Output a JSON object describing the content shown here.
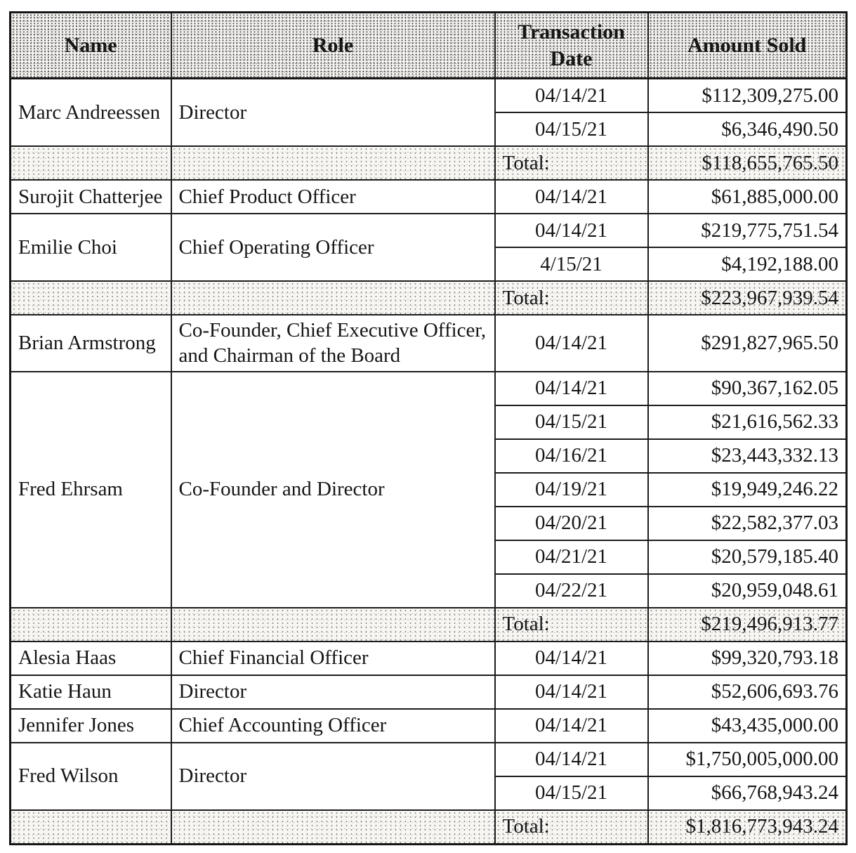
{
  "document": {
    "headers": {
      "name": "Name",
      "role": "Role",
      "date": "Transaction Date",
      "amount": "Amount Sold"
    },
    "total_label": "Total:",
    "groups": [
      {
        "name": "Marc Andreessen",
        "role": "Director",
        "transactions": [
          {
            "date": "04/14/21",
            "amount": "$112,309,275.00"
          },
          {
            "date": "04/15/21",
            "amount": "$6,346,490.50"
          }
        ],
        "total": "$118,655,765.50"
      },
      {
        "name": "Surojit Chatterjee",
        "role": "Chief Product Officer",
        "transactions": [
          {
            "date": "04/14/21",
            "amount": "$61,885,000.00"
          }
        ],
        "total": null
      },
      {
        "name": "Emilie Choi",
        "role": "Chief Operating Officer",
        "transactions": [
          {
            "date": "04/14/21",
            "amount": "$219,775,751.54"
          },
          {
            "date": "4/15/21",
            "amount": "$4,192,188.00"
          }
        ],
        "total": "$223,967,939.54"
      },
      {
        "name": "Brian Armstrong",
        "role": "Co-Founder, Chief Executive Officer, and Chairman of the Board",
        "transactions": [
          {
            "date": "04/14/21",
            "amount": "$291,827,965.50"
          }
        ],
        "total": null
      },
      {
        "name": "Fred Ehrsam",
        "role": "Co-Founder and Director",
        "transactions": [
          {
            "date": "04/14/21",
            "amount": "$90,367,162.05"
          },
          {
            "date": "04/15/21",
            "amount": "$21,616,562.33"
          },
          {
            "date": "04/16/21",
            "amount": "$23,443,332.13"
          },
          {
            "date": "04/19/21",
            "amount": "$19,949,246.22"
          },
          {
            "date": "04/20/21",
            "amount": "$22,582,377.03"
          },
          {
            "date": "04/21/21",
            "amount": "$20,579,185.40"
          },
          {
            "date": "04/22/21",
            "amount": "$20,959,048.61"
          }
        ],
        "total": "$219,496,913.77"
      },
      {
        "name": "Alesia Haas",
        "role": "Chief Financial Officer",
        "transactions": [
          {
            "date": "04/14/21",
            "amount": "$99,320,793.18"
          }
        ],
        "total": null
      },
      {
        "name": "Katie Haun",
        "role": "Director",
        "transactions": [
          {
            "date": "04/14/21",
            "amount": "$52,606,693.76"
          }
        ],
        "total": null
      },
      {
        "name": "Jennifer Jones",
        "role": "Chief Accounting Officer",
        "transactions": [
          {
            "date": "04/14/21",
            "amount": "$43,435,000.00"
          }
        ],
        "total": null
      },
      {
        "name": "Fred Wilson",
        "role": "Director",
        "transactions": [
          {
            "date": "04/14/21",
            "amount": "$1,750,005,000.00"
          },
          {
            "date": "04/15/21",
            "amount": "$66,768,943.24"
          }
        ],
        "total": "$1,816,773,943.24"
      }
    ],
    "colors": {
      "text": "#161616",
      "border": "#1c1c1c",
      "header_shading": "#f3f2ef",
      "total_row_shading": "#f7f6f3",
      "page_bg": "#ffffff"
    }
  }
}
